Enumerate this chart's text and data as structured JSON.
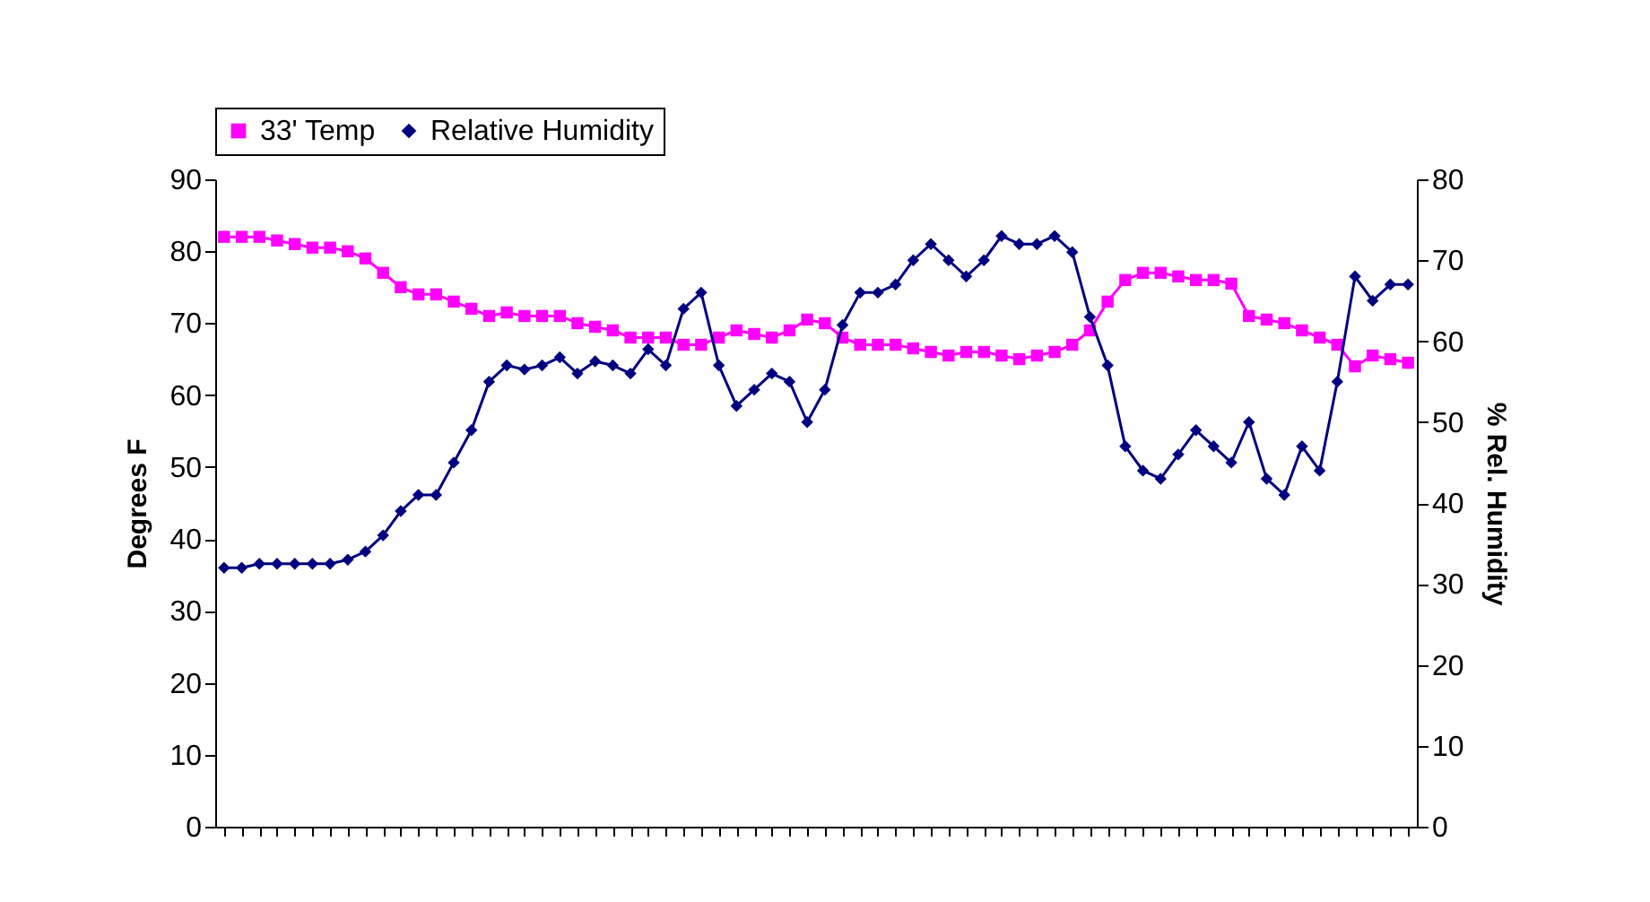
{
  "chart_data": {
    "type": "line",
    "ylabel": "Degrees F",
    "y2label": "% Rel. Humidity",
    "categories": [
      null,
      null,
      null,
      null,
      null,
      null,
      null,
      null,
      null,
      null,
      null,
      null,
      null,
      null,
      null,
      null,
      null,
      null,
      null,
      null,
      null,
      null,
      null,
      null,
      null,
      null,
      null,
      null,
      null,
      null,
      null,
      null,
      null,
      null,
      null,
      null,
      null,
      null,
      null,
      null,
      null,
      null,
      null,
      null,
      null,
      null,
      null,
      null,
      null,
      null,
      null,
      null,
      null,
      null,
      null,
      null,
      null,
      null,
      null,
      null,
      null,
      null,
      null,
      null,
      null,
      null,
      null,
      null
    ],
    "series": [
      {
        "name": "33' Temp",
        "color": "#ff00ff",
        "marker": "square",
        "values": [
          82,
          82,
          82,
          81.5,
          81,
          80.5,
          80.5,
          80,
          79,
          77,
          75,
          74,
          74,
          73,
          72,
          71,
          71.5,
          71,
          71,
          71,
          70,
          69.5,
          69,
          68,
          68,
          68,
          67,
          67,
          68,
          69,
          68.5,
          68,
          69,
          70.5,
          70,
          68,
          67,
          67,
          67,
          66.5,
          66,
          65.5,
          66,
          66,
          65.5,
          65,
          65.5,
          66,
          67,
          69,
          73,
          76,
          77,
          77,
          76.5,
          76,
          76,
          75.5,
          71,
          70.5,
          70,
          69,
          68,
          67,
          64,
          65.5,
          65,
          64.5
        ]
      },
      {
        "name": "Relative Humidity",
        "color": "#000080",
        "marker": "diamond",
        "axis": "y2",
        "values": [
          32,
          32,
          32.5,
          32.5,
          32.5,
          32.5,
          32.5,
          33,
          34,
          36,
          39,
          41,
          41,
          45,
          49,
          55,
          57,
          56.5,
          57,
          58,
          56,
          57.5,
          57,
          56,
          59,
          57,
          64,
          66,
          57,
          52,
          54,
          56,
          55,
          50,
          54,
          62,
          66,
          66,
          67,
          70,
          72,
          70,
          68,
          70,
          73,
          72,
          72,
          73,
          71,
          63,
          57,
          47,
          44,
          43,
          46,
          49,
          47,
          45,
          50,
          43,
          41,
          47,
          44,
          55,
          68,
          65,
          67,
          67
        ]
      }
    ],
    "ylim": [
      0,
      90
    ],
    "yticks": [
      0,
      10,
      20,
      30,
      40,
      50,
      60,
      70,
      80,
      90
    ],
    "y2lim": [
      0,
      80
    ],
    "y2ticks": [
      0,
      10,
      20,
      30,
      40,
      50,
      60,
      70,
      80
    ],
    "legend": "top",
    "grid": false,
    "line_style": "solid"
  }
}
